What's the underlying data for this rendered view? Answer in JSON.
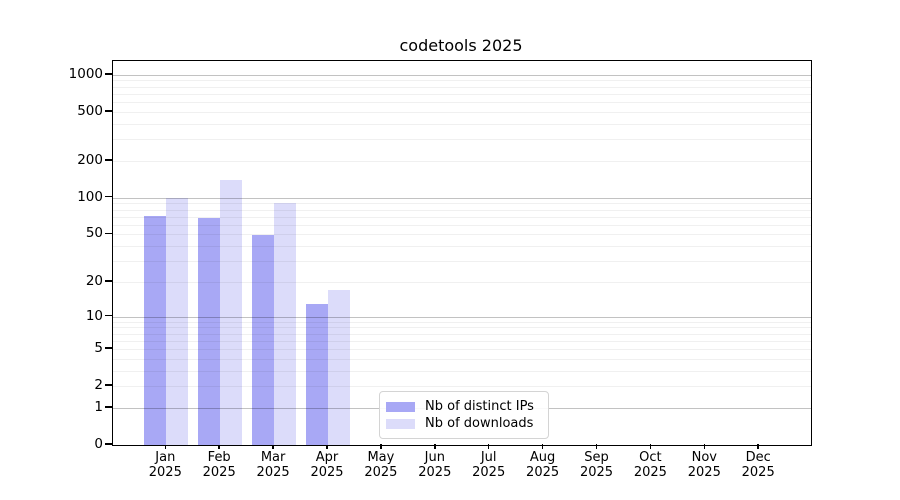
{
  "chart_data": {
    "type": "bar",
    "title": "codetools 2025",
    "categories": [
      "Jan",
      "Feb",
      "Mar",
      "Apr",
      "May",
      "Jun",
      "Jul",
      "Aug",
      "Sep",
      "Oct",
      "Nov",
      "Dec"
    ],
    "category_year": "2025",
    "series": [
      {
        "name": "Nb of distinct IPs",
        "color": "#a8a8f5",
        "values": [
          71,
          68,
          49,
          13,
          null,
          null,
          null,
          null,
          null,
          null,
          null,
          null
        ]
      },
      {
        "name": "Nb of downloads",
        "color": "#dcdcfa",
        "values": [
          100,
          139,
          90,
          17,
          null,
          null,
          null,
          null,
          null,
          null,
          null,
          null
        ]
      }
    ],
    "yticks": [
      0,
      1,
      2,
      5,
      10,
      20,
      50,
      100,
      200,
      500,
      1000
    ],
    "yscale": "log1p",
    "ylim": [
      0,
      1290
    ],
    "xlabel": "",
    "ylabel": "",
    "grid": "horizontal",
    "legend_position": "lower center-left inside plot",
    "colors": {
      "background": "#ffffff",
      "axis": "#000000",
      "grid_major": "#c3c3c3",
      "grid_minor": "#efefef",
      "text": "#000000"
    }
  }
}
